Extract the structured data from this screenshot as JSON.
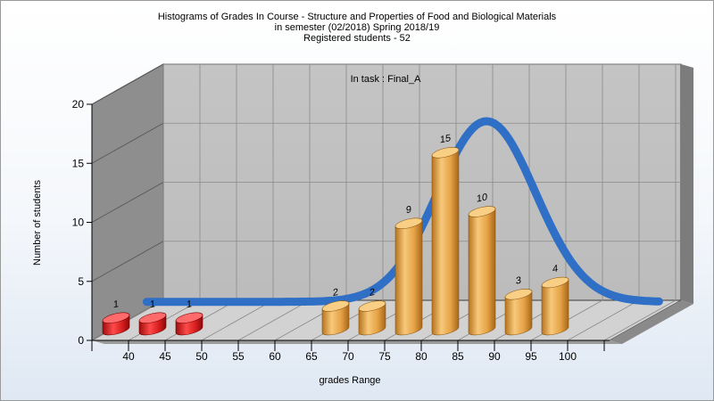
{
  "title_lines": [
    "Histograms of Grades  In Course - Structure and Properties of Food and Biological Materials",
    "in semester  (02/2018) Spring 2018/19",
    "Registered students - 52"
  ],
  "chart_data": {
    "type": "bar",
    "title": "Histograms of Grades  In Course - Structure and Properties of Food and Biological Materials",
    "subtitle": "in semester  (02/2018) Spring 2018/19 | Registered students - 52",
    "annotation": "In task : Final_A",
    "xlabel": "grades Range",
    "ylabel": "Number of students",
    "ylim": [
      0,
      20
    ],
    "yticks": [
      0,
      5,
      10,
      15,
      20
    ],
    "categories": [
      "40",
      "45",
      "50",
      "55",
      "60",
      "65",
      "70",
      "75",
      "80",
      "85",
      "90",
      "95",
      "100"
    ],
    "values": [
      1,
      1,
      1,
      0,
      0,
      0,
      2,
      2,
      9,
      15,
      10,
      3,
      4
    ],
    "bar_colors": {
      "fail": "#d42020",
      "pass": "#e8a64a"
    },
    "fail_categories": [
      "40",
      "45",
      "50"
    ],
    "curve_color": "#2f6fc5",
    "grid": true,
    "legend": "none"
  }
}
